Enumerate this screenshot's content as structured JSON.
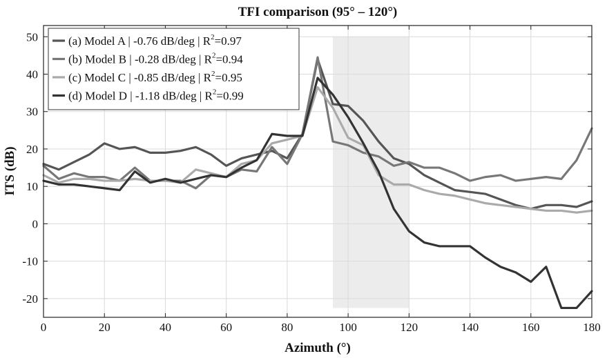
{
  "chart_data": {
    "type": "line",
    "title": "TFI comparison (95° – 120°)",
    "xlabel": "Azimuth (°)",
    "ylabel": "ITS (dB)",
    "xlim": [
      0,
      180
    ],
    "ylim": [
      -25,
      53
    ],
    "xticks": [
      0,
      20,
      40,
      60,
      80,
      100,
      120,
      140,
      160,
      180
    ],
    "yticks": [
      -20,
      -10,
      0,
      10,
      20,
      30,
      40,
      50
    ],
    "grid": true,
    "legend_position": "top-left",
    "shaded_region": {
      "x": [
        95,
        120
      ],
      "y": [
        -22.5,
        50
      ]
    },
    "series": [
      {
        "legend_prefix": "(a) Model A | -0.76 dB/deg | R",
        "legend_sup": "2",
        "legend_suffix": "=0.97",
        "color": "#555555",
        "x": [
          0,
          5,
          10,
          15,
          20,
          25,
          30,
          35,
          40,
          45,
          50,
          55,
          60,
          65,
          70,
          75,
          80,
          85,
          90,
          95,
          100,
          105,
          110,
          115,
          120,
          125,
          130,
          135,
          140,
          145,
          150,
          155,
          160,
          165,
          170,
          175,
          180
        ],
        "y": [
          16,
          14.5,
          16.5,
          18.5,
          21.5,
          20,
          20.5,
          19,
          19,
          19.5,
          20.5,
          18.5,
          15.5,
          17.5,
          18.5,
          19.5,
          17.5,
          24,
          44,
          32,
          31.5,
          27.5,
          22,
          17.5,
          16,
          13,
          11,
          9,
          8.5,
          8,
          6.5,
          5,
          4,
          5,
          5,
          4.5,
          6
        ]
      },
      {
        "legend_prefix": "(b) Model B | -0.28 dB/deg | R",
        "legend_sup": "2",
        "legend_suffix": "=0.94",
        "color": "#777777",
        "x": [
          0,
          5,
          10,
          15,
          20,
          25,
          30,
          35,
          40,
          45,
          50,
          55,
          60,
          65,
          70,
          75,
          80,
          85,
          90,
          95,
          100,
          105,
          110,
          115,
          120,
          125,
          130,
          135,
          140,
          145,
          150,
          155,
          160,
          165,
          170,
          175,
          180
        ],
        "y": [
          15.5,
          12,
          13.5,
          12.5,
          12.5,
          11.5,
          15,
          11.5,
          11.5,
          11.5,
          9.5,
          13,
          12.5,
          14.5,
          14,
          20.5,
          16,
          24,
          44.5,
          22,
          21,
          19,
          18,
          15.5,
          16.5,
          15,
          15,
          13.5,
          11.5,
          12.5,
          13,
          11.5,
          12,
          12.5,
          12,
          17,
          25.5
        ]
      },
      {
        "legend_prefix": "(c) Model C | -0.85 dB/deg | R",
        "legend_sup": "2",
        "legend_suffix": "=0.95",
        "color": "#aaaaaa",
        "x": [
          0,
          5,
          10,
          15,
          20,
          25,
          30,
          35,
          40,
          45,
          50,
          55,
          60,
          65,
          70,
          75,
          80,
          85,
          90,
          95,
          100,
          105,
          110,
          115,
          120,
          125,
          130,
          135,
          140,
          145,
          150,
          155,
          160,
          165,
          170,
          175,
          180
        ],
        "y": [
          13,
          11,
          12,
          12,
          11.5,
          11.5,
          12,
          11.5,
          11.5,
          11,
          14.5,
          13.5,
          12.5,
          16,
          17,
          21.5,
          22.5,
          23.5,
          36.5,
          31,
          23,
          21,
          13,
          10.5,
          10.5,
          9,
          8,
          7.5,
          6.5,
          5.5,
          5,
          4.5,
          4,
          3.5,
          3.5,
          3,
          3.5
        ]
      },
      {
        "legend_prefix": "(d) Model D | -1.18 dB/deg | R",
        "legend_sup": "2",
        "legend_suffix": "=0.99",
        "color": "#333333",
        "x": [
          0,
          5,
          10,
          15,
          20,
          25,
          30,
          35,
          40,
          45,
          50,
          55,
          60,
          65,
          70,
          75,
          80,
          85,
          90,
          95,
          100,
          105,
          110,
          115,
          120,
          125,
          130,
          135,
          140,
          145,
          150,
          155,
          160,
          165,
          170,
          175,
          180
        ],
        "y": [
          11.5,
          10.5,
          10.5,
          10,
          9.5,
          9,
          14,
          11,
          12,
          11,
          12,
          13,
          12.5,
          15,
          17,
          24,
          23.5,
          23.5,
          39,
          34.5,
          28.5,
          21.5,
          14,
          4,
          -2,
          -5,
          -6,
          -6,
          -6,
          -9,
          -11.5,
          -13,
          -15.5,
          -11.5,
          -22.5,
          -22.5,
          -18
        ]
      }
    ]
  }
}
